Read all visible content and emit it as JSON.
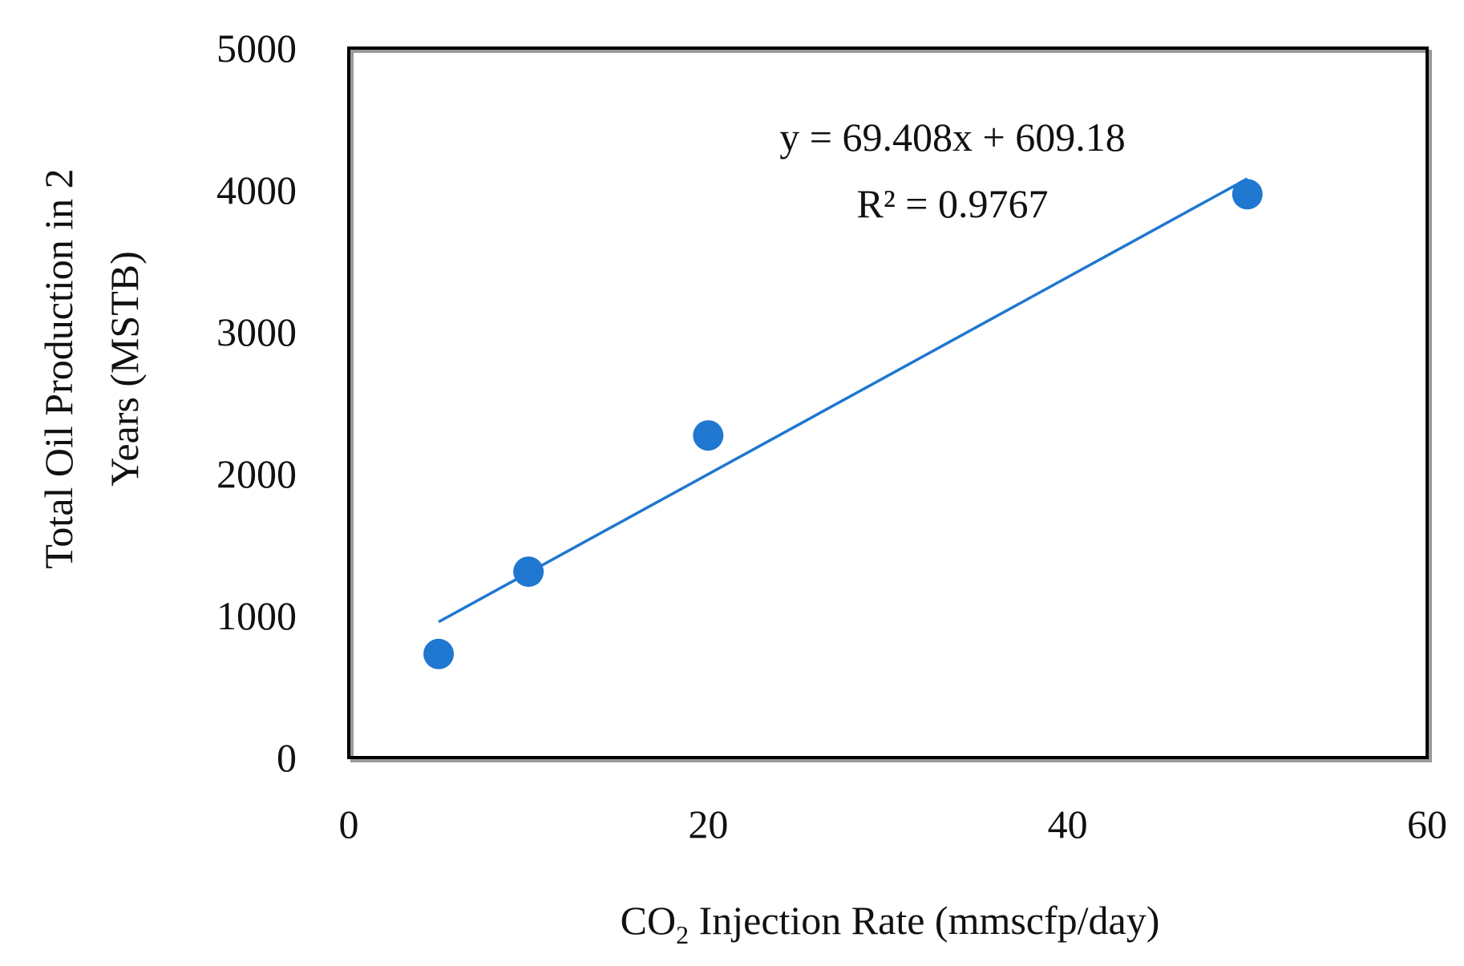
{
  "chart_data": {
    "type": "scatter",
    "title": "",
    "xlabel": {
      "prefix": "CO",
      "subscript": "2",
      "suffix": " Injection Rate (mmscfp/day)"
    },
    "ylabel_lines": [
      "Total Oil Production in 2",
      "Years (MSTB)"
    ],
    "xlim": [
      0,
      60
    ],
    "ylim": [
      0,
      5000
    ],
    "x_ticks": [
      0,
      20,
      40,
      60
    ],
    "x_tick_labels": [
      "0",
      "20",
      "40",
      "60"
    ],
    "y_ticks": [
      0,
      1000,
      2000,
      3000,
      4000,
      5000
    ],
    "y_tick_labels": [
      "0",
      "1000",
      "2000",
      "3000",
      "4000",
      "5000"
    ],
    "grid": false,
    "series": [
      {
        "name": "Total Oil Production",
        "x": [
          5,
          10,
          20,
          50
        ],
        "y": [
          730,
          1310,
          2270,
          3970
        ]
      }
    ],
    "trendline": {
      "type": "linear",
      "slope": 69.408,
      "intercept": 609.18,
      "x_range": [
        5,
        50
      ],
      "equation": "y = 69.408x + 609.18",
      "r2_label": "R² = 0.9767"
    },
    "colors": {
      "marker": "#1f77d0",
      "trendline": "#1f77d0",
      "frame": "#000000"
    }
  }
}
